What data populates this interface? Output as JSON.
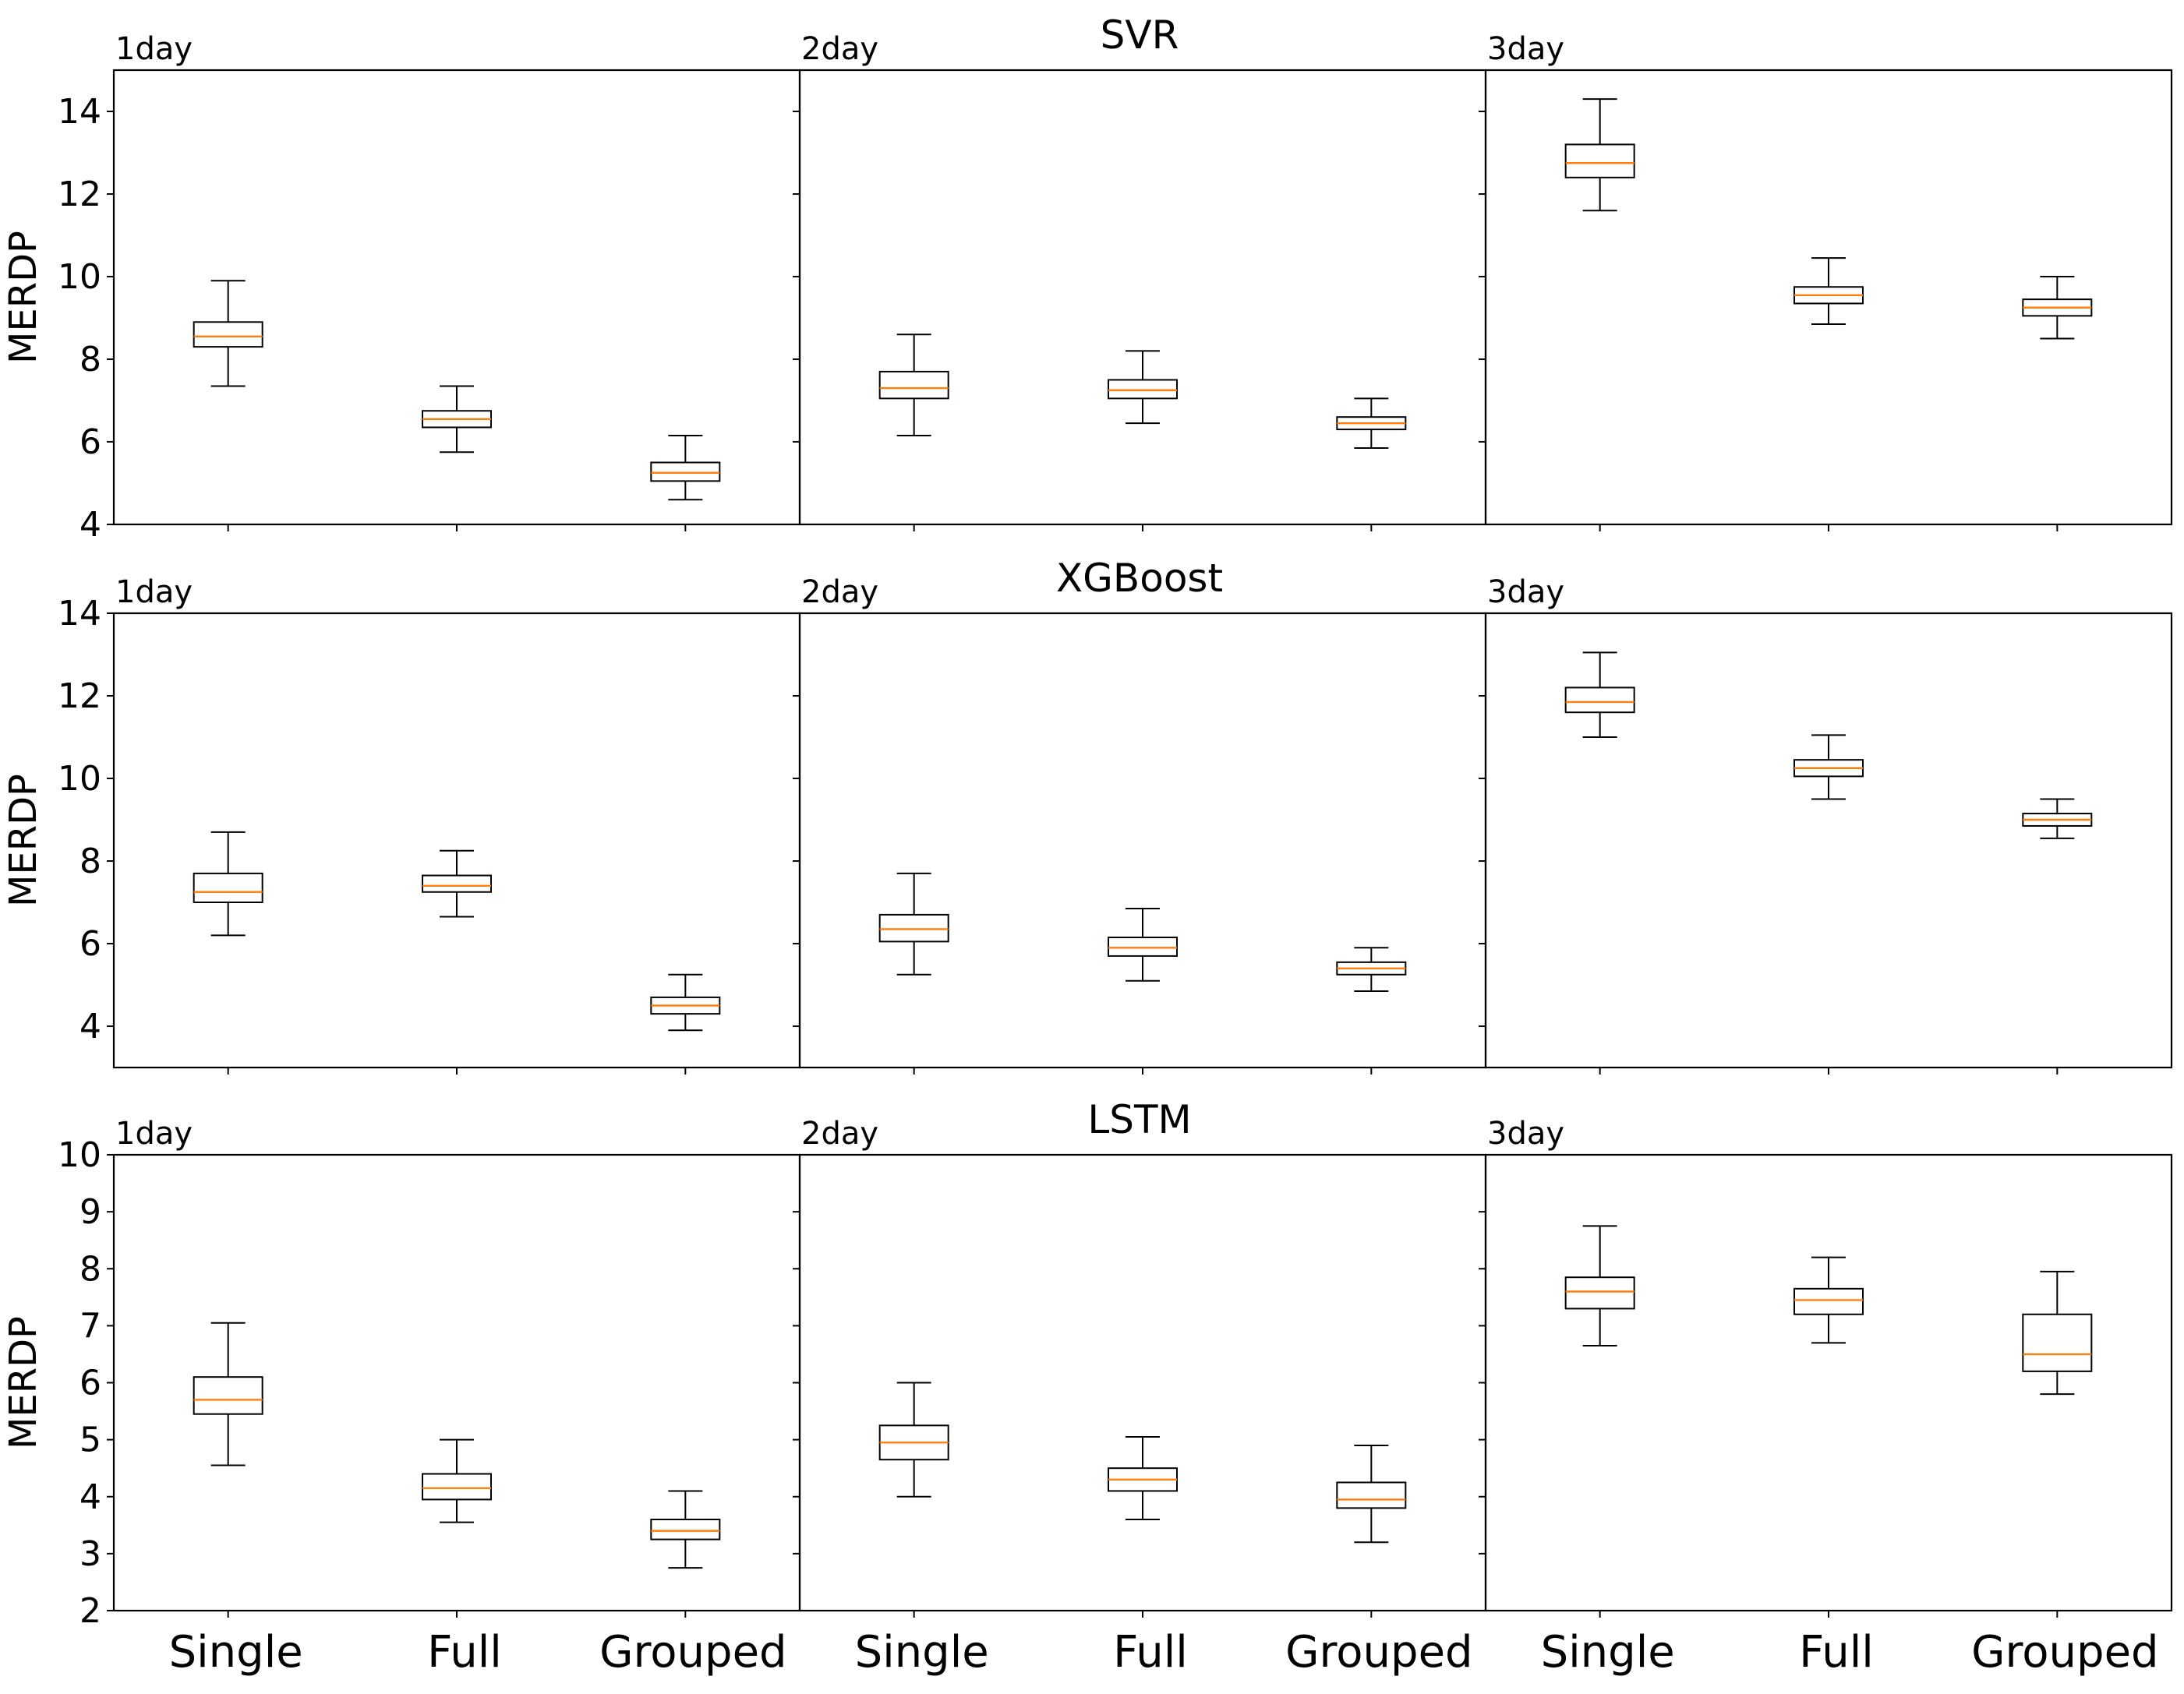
{
  "chart_data": {
    "type": "boxplot",
    "ylabel": "MERDP",
    "categories": [
      "Single",
      "Full",
      "Grouped"
    ],
    "median_color": "#ff7f0e",
    "box_color": "#000000",
    "rows": [
      {
        "title": "SVR",
        "ylim": [
          4,
          15
        ],
        "yticks": [
          4,
          6,
          8,
          10,
          12,
          14
        ],
        "panels": [
          {
            "label": "1day",
            "boxes": [
              {
                "category": "Single",
                "whislo": 7.35,
                "q1": 8.3,
                "median": 8.55,
                "q3": 8.9,
                "whishi": 9.9
              },
              {
                "category": "Full",
                "whislo": 5.75,
                "q1": 6.35,
                "median": 6.55,
                "q3": 6.75,
                "whishi": 7.35
              },
              {
                "category": "Grouped",
                "whislo": 4.6,
                "q1": 5.05,
                "median": 5.25,
                "q3": 5.5,
                "whishi": 6.15
              }
            ]
          },
          {
            "label": "2day",
            "boxes": [
              {
                "category": "Single",
                "whislo": 6.15,
                "q1": 7.05,
                "median": 7.3,
                "q3": 7.7,
                "whishi": 8.6
              },
              {
                "category": "Full",
                "whislo": 6.45,
                "q1": 7.05,
                "median": 7.25,
                "q3": 7.5,
                "whishi": 8.2
              },
              {
                "category": "Grouped",
                "whislo": 5.85,
                "q1": 6.3,
                "median": 6.45,
                "q3": 6.6,
                "whishi": 7.05
              }
            ]
          },
          {
            "label": "3day",
            "boxes": [
              {
                "category": "Single",
                "whislo": 11.6,
                "q1": 12.4,
                "median": 12.75,
                "q3": 13.2,
                "whishi": 14.3
              },
              {
                "category": "Full",
                "whislo": 8.85,
                "q1": 9.35,
                "median": 9.55,
                "q3": 9.75,
                "whishi": 10.45
              },
              {
                "category": "Grouped",
                "whislo": 8.5,
                "q1": 9.05,
                "median": 9.25,
                "q3": 9.45,
                "whishi": 10.0
              }
            ]
          }
        ]
      },
      {
        "title": "XGBoost",
        "ylim": [
          3,
          14
        ],
        "yticks": [
          4,
          6,
          8,
          10,
          12,
          14
        ],
        "panels": [
          {
            "label": "1day",
            "boxes": [
              {
                "category": "Single",
                "whislo": 6.2,
                "q1": 7.0,
                "median": 7.25,
                "q3": 7.7,
                "whishi": 8.7
              },
              {
                "category": "Full",
                "whislo": 6.65,
                "q1": 7.25,
                "median": 7.4,
                "q3": 7.65,
                "whishi": 8.25
              },
              {
                "category": "Grouped",
                "whislo": 3.9,
                "q1": 4.3,
                "median": 4.5,
                "q3": 4.7,
                "whishi": 5.25
              }
            ]
          },
          {
            "label": "2day",
            "boxes": [
              {
                "category": "Single",
                "whislo": 5.25,
                "q1": 6.05,
                "median": 6.35,
                "q3": 6.7,
                "whishi": 7.7
              },
              {
                "category": "Full",
                "whislo": 5.1,
                "q1": 5.7,
                "median": 5.9,
                "q3": 6.15,
                "whishi": 6.85
              },
              {
                "category": "Grouped",
                "whislo": 4.85,
                "q1": 5.25,
                "median": 5.4,
                "q3": 5.55,
                "whishi": 5.9
              }
            ]
          },
          {
            "label": "3day",
            "boxes": [
              {
                "category": "Single",
                "whislo": 11.0,
                "q1": 11.6,
                "median": 11.85,
                "q3": 12.2,
                "whishi": 13.05
              },
              {
                "category": "Full",
                "whislo": 9.5,
                "q1": 10.05,
                "median": 10.25,
                "q3": 10.45,
                "whishi": 11.05
              },
              {
                "category": "Grouped",
                "whislo": 8.55,
                "q1": 8.85,
                "median": 9.0,
                "q3": 9.15,
                "whishi": 9.5
              }
            ]
          }
        ]
      },
      {
        "title": "LSTM",
        "ylim": [
          2,
          10
        ],
        "yticks": [
          2,
          3,
          4,
          5,
          6,
          7,
          8,
          9,
          10
        ],
        "panels": [
          {
            "label": "1day",
            "boxes": [
              {
                "category": "Single",
                "whislo": 4.55,
                "q1": 5.45,
                "median": 5.7,
                "q3": 6.1,
                "whishi": 7.05
              },
              {
                "category": "Full",
                "whislo": 3.55,
                "q1": 3.95,
                "median": 4.15,
                "q3": 4.4,
                "whishi": 5.0
              },
              {
                "category": "Grouped",
                "whislo": 2.75,
                "q1": 3.25,
                "median": 3.4,
                "q3": 3.6,
                "whishi": 4.1
              }
            ]
          },
          {
            "label": "2day",
            "boxes": [
              {
                "category": "Single",
                "whislo": 4.0,
                "q1": 4.65,
                "median": 4.95,
                "q3": 5.25,
                "whishi": 6.0
              },
              {
                "category": "Full",
                "whislo": 3.6,
                "q1": 4.1,
                "median": 4.3,
                "q3": 4.5,
                "whishi": 5.05
              },
              {
                "category": "Grouped",
                "whislo": 3.2,
                "q1": 3.8,
                "median": 3.95,
                "q3": 4.25,
                "whishi": 4.9
              }
            ]
          },
          {
            "label": "3day",
            "boxes": [
              {
                "category": "Single",
                "whislo": 6.65,
                "q1": 7.3,
                "median": 7.6,
                "q3": 7.85,
                "whishi": 8.75
              },
              {
                "category": "Full",
                "whislo": 6.7,
                "q1": 7.2,
                "median": 7.45,
                "q3": 7.65,
                "whishi": 8.2
              },
              {
                "category": "Grouped",
                "whislo": 5.8,
                "q1": 6.2,
                "median": 6.5,
                "q3": 7.2,
                "whishi": 7.95
              }
            ]
          }
        ]
      }
    ]
  }
}
